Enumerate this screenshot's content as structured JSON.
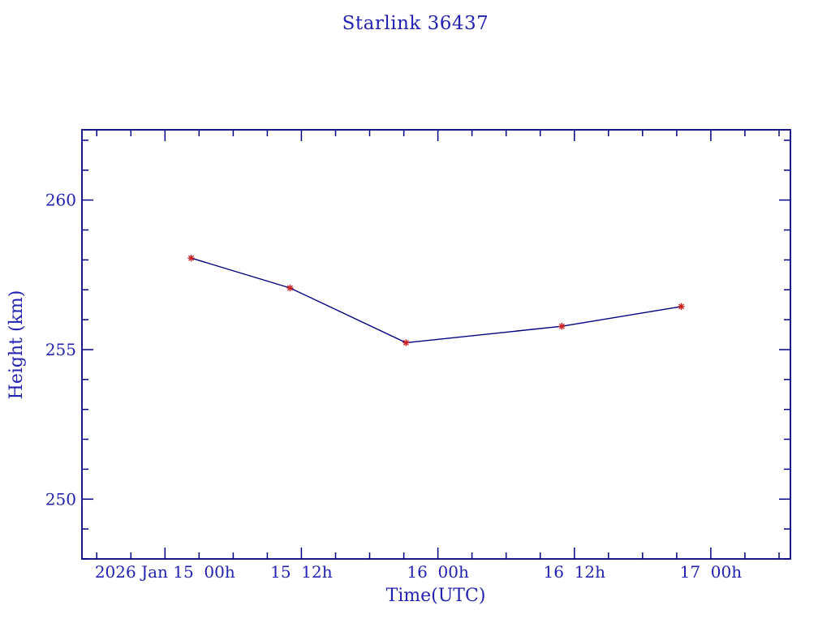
{
  "page": {
    "background": "#ffffff"
  },
  "chart_data": {
    "type": "line",
    "title": "Starlink 36437",
    "xlabel": "Time(UTC)",
    "ylabel": "Height (km)",
    "grid": false,
    "legend": null,
    "xlim_hours_since_2026_01_15_00h_utc": [
      -7.3,
      55.0
    ],
    "ylim_km": [
      248.0,
      262.35
    ],
    "x_minor_step_hours": 3,
    "y_minor_step_km": 1,
    "x_major_ticks": [
      {
        "t": 0,
        "label": "2026 Jan 15  00h"
      },
      {
        "t": 12,
        "label": "15  12h"
      },
      {
        "t": 24,
        "label": "16  00h"
      },
      {
        "t": 36,
        "label": "16  12h"
      },
      {
        "t": 48,
        "label": "17  00h"
      }
    ],
    "y_major_ticks": [
      {
        "v": 250,
        "label": "250"
      },
      {
        "v": 255,
        "label": "255"
      },
      {
        "v": 260,
        "label": "260"
      }
    ],
    "series": [
      {
        "name": "height",
        "marker": "asterisk",
        "x_hours_since_2026_01_15_00h_utc": [
          2.3,
          11.0,
          21.2,
          34.9,
          45.4
        ],
        "heights_km": [
          258.06,
          257.06,
          255.23,
          255.78,
          256.44
        ]
      }
    ],
    "colors": {
      "frame": "#000080",
      "line": "#000080",
      "marker": "#cc2222",
      "text": "#2222b2"
    }
  }
}
